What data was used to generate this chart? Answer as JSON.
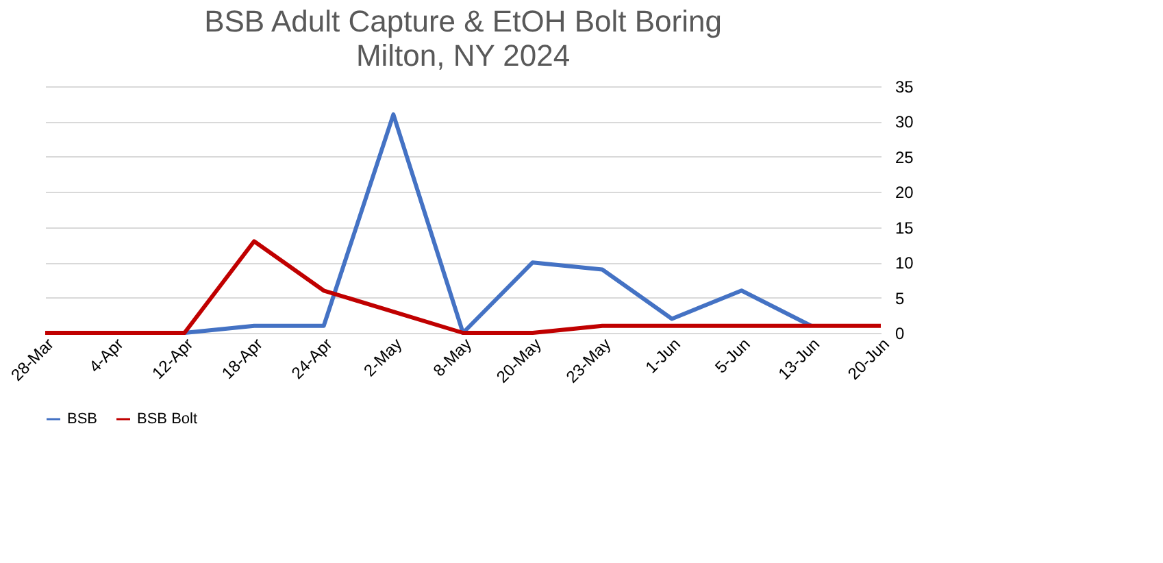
{
  "chart_data": {
    "type": "line",
    "title": "BSB Adult Capture & EtOH Bolt Boring",
    "subtitle": "Milton, NY 2024",
    "categories": [
      "28-Mar",
      "4-Apr",
      "12-Apr",
      "18-Apr",
      "24-Apr",
      "2-May",
      "8-May",
      "20-May",
      "23-May",
      "1-Jun",
      "5-Jun",
      "13-Jun",
      "20-Jun"
    ],
    "series": [
      {
        "name": "BSB",
        "color": "#4472c4",
        "values": [
          0,
          0,
          0,
          1,
          1,
          31,
          0,
          10,
          9,
          2,
          6,
          1,
          null
        ]
      },
      {
        "name": "BSB Bolt",
        "color": "#c00000",
        "values": [
          0,
          0,
          0,
          13,
          6,
          3,
          0,
          0,
          1,
          1,
          1,
          1,
          1
        ]
      }
    ],
    "ylim": [
      0,
      35
    ],
    "yticks": [
      0,
      5,
      10,
      15,
      20,
      25,
      30,
      35
    ],
    "grid": "y",
    "legend": "bottom",
    "marker": "none",
    "line_style": "solid"
  }
}
